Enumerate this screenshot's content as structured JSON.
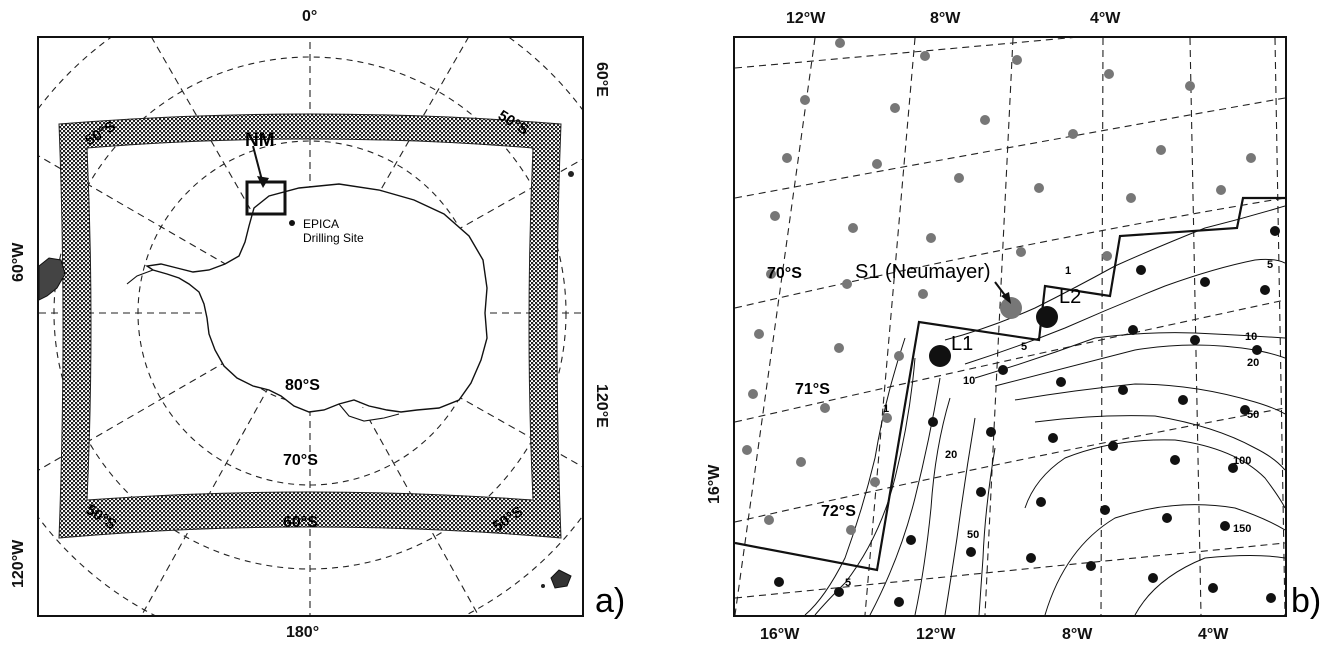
{
  "panel_a": {
    "letter": "a)",
    "edge_labels": {
      "top": "0°",
      "bottom": "180°",
      "left_upper": "60°W",
      "left_lower": "120°W",
      "right_upper": "60°E",
      "right_lower": "120°E"
    },
    "grid_labels": {
      "lat50_nw": "50°S",
      "lat50_ne": "50°S",
      "lat50_sw": "50°S",
      "lat50_se": "50°S",
      "lat60": "60°S",
      "lat70": "70°S",
      "lat80": "80°S"
    },
    "nm_label": "NM",
    "epica_line1": "EPICA",
    "epica_line2": "Drilling Site"
  },
  "panel_b": {
    "letter": "b)",
    "top_labels": [
      "12°W",
      "8°W",
      "4°W"
    ],
    "bottom_labels": [
      "16°W",
      "12°W",
      "8°W",
      "4°W"
    ],
    "left_label": "16°W",
    "lat_labels": [
      "70°S",
      "71°S",
      "72°S"
    ],
    "station_label": "S1 (Neumayer)",
    "site_labels": [
      "L1",
      "L2"
    ],
    "contour_labels": [
      "1",
      "1",
      "5",
      "5",
      "5",
      "10",
      "10",
      "20",
      "20",
      "50",
      "50",
      "100",
      "150"
    ]
  }
}
